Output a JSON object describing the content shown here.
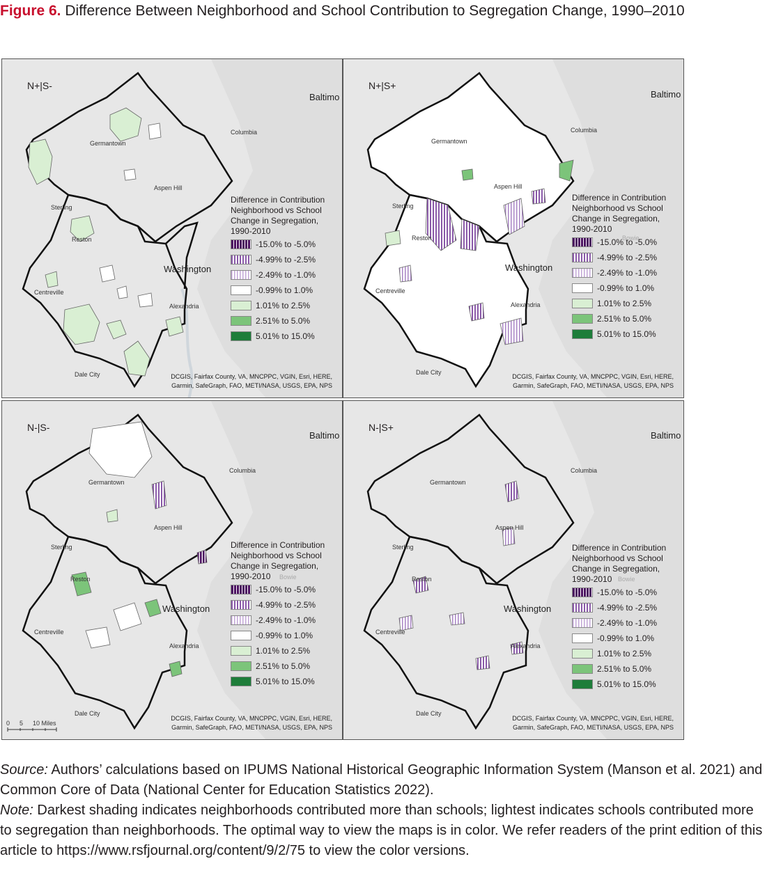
{
  "figure": {
    "label": "Figure 6.",
    "title": "Difference Between Neighborhood and School Contribution to Segregation Change, 1990–2010"
  },
  "legend": {
    "title": "Difference in Contribution Neighborhood vs School Change in Segregation, 1990-2010",
    "items": [
      {
        "label": "-15.0% to -5.0%",
        "color": "#4b1060",
        "pattern": "hatch-dark"
      },
      {
        "label": "-4.99% to -2.5%",
        "color": "#8a5aa8",
        "pattern": "hatch-mid"
      },
      {
        "label": "-2.49% to -1.0%",
        "color": "#c2a6d6",
        "pattern": "hatch-light"
      },
      {
        "label": "-0.99% to 1.0%",
        "color": "#ffffff",
        "pattern": "none"
      },
      {
        "label": "1.01% to 2.5%",
        "color": "#d9efd3",
        "pattern": "none"
      },
      {
        "label": "2.51% to 5.0%",
        "color": "#7cc47a",
        "pattern": "none"
      },
      {
        "label": "5.01% to 15.0%",
        "color": "#1e7d3a",
        "pattern": "none"
      }
    ]
  },
  "places": {
    "baltimore": "Baltimo",
    "columbia": "Columbia",
    "germantown": "Germantown",
    "aspen_hill": "Aspen Hill",
    "sterling": "Sterling",
    "reston": "Reston",
    "washington": "Washington",
    "bowie": "Bowie",
    "centreville": "Centreville",
    "alexandria": "Alexandria",
    "dale_city": "Dale City"
  },
  "credits": "DCGIS, Fairfax County, VA, MNCPPC, VGIN, Esri, HERE, Garmin, SafeGraph, FAO, METI/NASA, USGS, EPA, NPS",
  "scalebar": {
    "ticks": [
      "0",
      "5",
      "10 Miles"
    ]
  },
  "panels": [
    {
      "label": "N+|S-"
    },
    {
      "label": "N+|S+"
    },
    {
      "label": "N-|S-"
    },
    {
      "label": "N-|S+"
    }
  ],
  "source": {
    "source_label": "Source:",
    "source_text": "Authors’ calculations based on IPUMS National Historical Geographic Information System (Manson et al. 2021) and Common Core of Data (National Center for Education Statistics 2022).",
    "note_label": "Note:",
    "note_text": "Darkest shading indicates neighborhoods contributed more than schools; lightest indicates schools contributed more to segregation than neighborhoods. The optimal way to view the maps is in color. We refer readers of the print edition of this article to https://www.rsfjournal.org/content/9/2/75 to view the color versions."
  }
}
